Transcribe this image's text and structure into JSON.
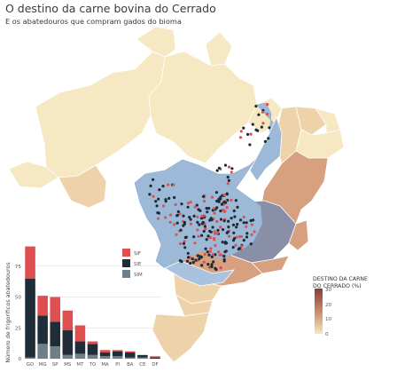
{
  "header": {
    "title": "O destino da carne bovina do Cerrado",
    "subtitle": "E os abatedouros que compram gados do bioma"
  },
  "map_legend": {
    "title_line1": "DESTINO DA CARNE",
    "title_line2": "DO CERRADO (%)",
    "ticks": [
      "30",
      "20",
      "10",
      "0"
    ],
    "color_low": "#f7e6c1",
    "color_high": "#8a3d3a"
  },
  "map_colors": {
    "cerrado_blue": "#9db9d8",
    "dark_state": "#8a8fa8",
    "light_state": "#f7e8c4",
    "mid_state": "#eed3aa",
    "warm_state": "#d7a07f",
    "dot_dark": "#1e2a36",
    "dot_red": "#d9534f"
  },
  "chart_data": {
    "type": "bar",
    "stacked": true,
    "categories": [
      "GO",
      "MG",
      "SP",
      "MS",
      "MT",
      "TO",
      "MA",
      "PI",
      "BA",
      "CE",
      "DF"
    ],
    "series": [
      {
        "name": "SIF",
        "color": "#e04f4f",
        "values": [
          26,
          16,
          20,
          16,
          13,
          2,
          2,
          1,
          1,
          0,
          1
        ]
      },
      {
        "name": "SIE",
        "color": "#1f2d38",
        "values": [
          64,
          23,
          20,
          20,
          10,
          9,
          3,
          4,
          4,
          2,
          1
        ]
      },
      {
        "name": "SIM",
        "color": "#6f7f88",
        "values": [
          1,
          12,
          10,
          3,
          4,
          3,
          2,
          2,
          1,
          1,
          0
        ]
      }
    ],
    "ylabel": "Número de frigoríficos abatedouros",
    "yticks": [
      0,
      25,
      50,
      75
    ],
    "ylim": [
      0,
      95
    ],
    "legend_position": "right"
  }
}
